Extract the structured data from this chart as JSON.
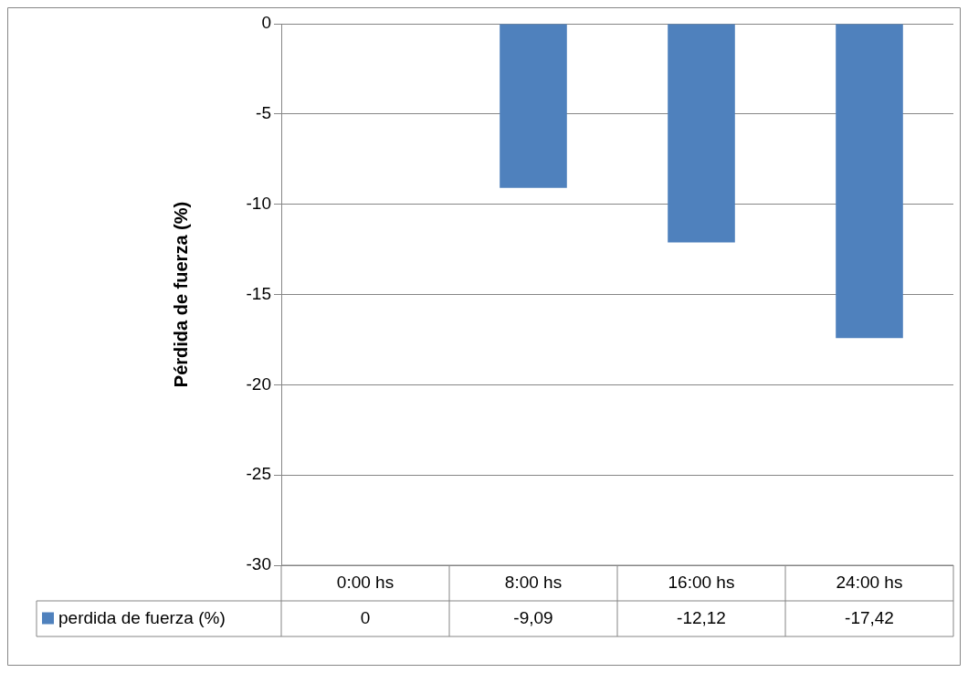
{
  "chart_data": {
    "type": "bar",
    "ylabel": "Pérdida de fuerza (%)",
    "categories": [
      "0:00 hs",
      "8:00 hs",
      "16:00 hs",
      "24:00 hs"
    ],
    "series": [
      {
        "name": "perdida de fuerza (%)",
        "color": "#4f81bd",
        "values": [
          0,
          -9.09,
          -12.12,
          -17.42
        ],
        "value_labels": [
          "0",
          "-9,09",
          "-12,12",
          "-17,42"
        ]
      }
    ],
    "ylim": [
      -30,
      0
    ],
    "yticks": [
      0,
      -5,
      -10,
      -15,
      -20,
      -25,
      -30
    ],
    "grid": "y",
    "legend": "bottom"
  }
}
